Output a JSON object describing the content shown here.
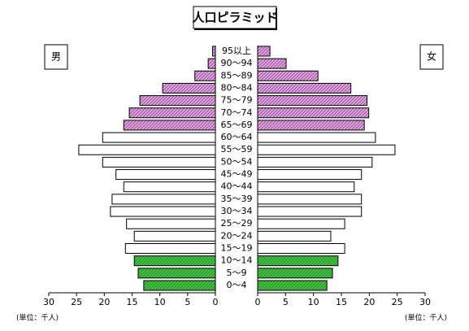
{
  "chart_data": {
    "type": "pyramid",
    "title": "人口ピラミッド",
    "unit_label_left": "(単位：千人)",
    "unit_label_right": "(単位：千人)",
    "categories": [
      "0〜4",
      "5〜9",
      "10〜14",
      "15〜19",
      "20〜24",
      "25〜29",
      "30〜34",
      "35〜39",
      "40〜44",
      "45〜49",
      "50〜54",
      "55〜59",
      "60〜64",
      "65〜69",
      "70〜74",
      "75〜79",
      "80〜84",
      "85〜89",
      "90〜94",
      "95以上"
    ],
    "series": [
      {
        "name": "男",
        "side": "left",
        "values": [
          12.9,
          13.9,
          14.6,
          16.2,
          14.6,
          16.0,
          18.9,
          18.6,
          16.5,
          17.9,
          20.3,
          24.6,
          20.3,
          16.5,
          15.5,
          13.6,
          9.5,
          3.7,
          1.3,
          0.5
        ],
        "colors": [
          "#33cc33",
          "#33cc33",
          "#33cc33",
          "#ffffff",
          "#ffffff",
          "#ffffff",
          "#ffffff",
          "#ffffff",
          "#ffffff",
          "#ffffff",
          "#ffffff",
          "#ffffff",
          "#ffffff",
          "#ee99ee",
          "#ee99ee",
          "#ee99ee",
          "#ee99ee",
          "#ee99ee",
          "#ee99ee",
          "#ee99ee"
        ]
      },
      {
        "name": "女",
        "side": "right",
        "values": [
          12.4,
          13.4,
          14.4,
          15.6,
          13.1,
          15.6,
          18.6,
          18.6,
          17.3,
          18.6,
          20.5,
          24.6,
          21.1,
          19.1,
          19.9,
          19.6,
          16.7,
          10.8,
          5.1,
          2.2
        ],
        "colors": [
          "#33cc33",
          "#33cc33",
          "#33cc33",
          "#ffffff",
          "#ffffff",
          "#ffffff",
          "#ffffff",
          "#ffffff",
          "#ffffff",
          "#ffffff",
          "#ffffff",
          "#ffffff",
          "#ffffff",
          "#ee99ee",
          "#ee99ee",
          "#ee99ee",
          "#ee99ee",
          "#ee99ee",
          "#ee99ee",
          "#ee99ee"
        ]
      }
    ],
    "xlim": [
      0,
      30
    ],
    "xticks": [
      0,
      5,
      10,
      15,
      20,
      25,
      30
    ]
  }
}
